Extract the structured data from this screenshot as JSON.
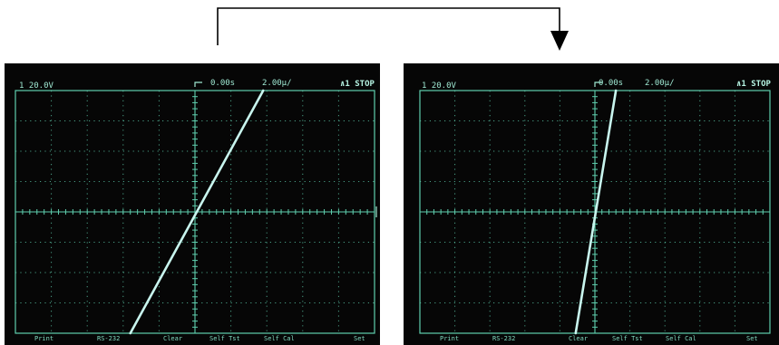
{
  "screens": [
    {
      "ch_scale": "1 20.0V",
      "time_position": "0.00s",
      "time_scale": "2.00µ/",
      "run_state": "∧1 STOP",
      "softkeys": [
        "Print",
        "RS-232",
        "Clear",
        "Self Tst",
        "Self Cal",
        "Set"
      ],
      "trace": {
        "bottom_at": -1.8,
        "top_at": 1.9
      }
    },
    {
      "ch_scale": "1 20.0V",
      "time_position": "0.00s",
      "time_scale": "2.00µ/",
      "run_state": "∧1 STOP",
      "softkeys": [
        "Print",
        "RS-232",
        "Clear",
        "Self Tst",
        "Self Cal",
        "Set"
      ],
      "trace": {
        "bottom_at": -0.55,
        "top_at": 0.6
      }
    }
  ],
  "colors": {
    "trace": "#c8f5ee",
    "grid": "#5fcfae",
    "background": "#060606"
  }
}
